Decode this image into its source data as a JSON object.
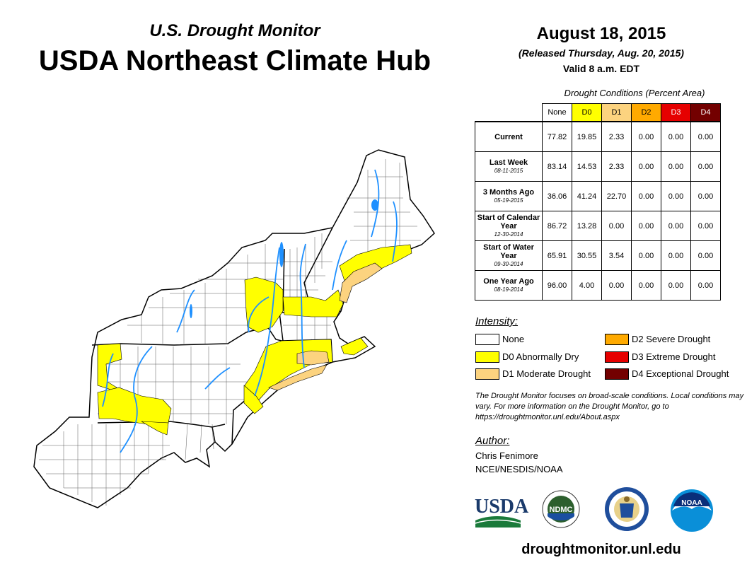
{
  "header": {
    "subtitle": "U.S. Drought Monitor",
    "title": "USDA Northeast Climate Hub",
    "date": "August 18, 2015",
    "released": "(Released Thursday, Aug. 20, 2015)",
    "valid": "Valid 8 a.m. EDT"
  },
  "table": {
    "caption": "Drought Conditions (Percent Area)",
    "columns": [
      {
        "label": "None",
        "color": "#ffffff",
        "text_color": "#000000"
      },
      {
        "label": "D0",
        "color": "#ffff00",
        "text_color": "#000000"
      },
      {
        "label": "D1",
        "color": "#fcd37f",
        "text_color": "#000000"
      },
      {
        "label": "D2",
        "color": "#ffaa00",
        "text_color": "#000000"
      },
      {
        "label": "D3",
        "color": "#e60000",
        "text_color": "#ffffff"
      },
      {
        "label": "D4",
        "color": "#730000",
        "text_color": "#ffffff"
      }
    ],
    "rows": [
      {
        "label": "Current",
        "date": "",
        "values": [
          "77.82",
          "19.85",
          "2.33",
          "0.00",
          "0.00",
          "0.00"
        ]
      },
      {
        "label": "Last Week",
        "date": "08-11-2015",
        "values": [
          "83.14",
          "14.53",
          "2.33",
          "0.00",
          "0.00",
          "0.00"
        ]
      },
      {
        "label": "3 Months Ago",
        "date": "05-19-2015",
        "values": [
          "36.06",
          "41.24",
          "22.70",
          "0.00",
          "0.00",
          "0.00"
        ]
      },
      {
        "label": "Start of Calendar Year",
        "date": "12-30-2014",
        "values": [
          "86.72",
          "13.28",
          "0.00",
          "0.00",
          "0.00",
          "0.00"
        ]
      },
      {
        "label": "Start of Water Year",
        "date": "09-30-2014",
        "values": [
          "65.91",
          "30.55",
          "3.54",
          "0.00",
          "0.00",
          "0.00"
        ]
      },
      {
        "label": "One Year Ago",
        "date": "08-19-2014",
        "values": [
          "96.00",
          "4.00",
          "0.00",
          "0.00",
          "0.00",
          "0.00"
        ]
      }
    ]
  },
  "legend": {
    "title": "Intensity:",
    "items": [
      {
        "label": "None",
        "color": "#ffffff"
      },
      {
        "label": "D0 Abnormally Dry",
        "color": "#ffff00"
      },
      {
        "label": "D1 Moderate Drought",
        "color": "#fcd37f"
      },
      {
        "label": "D2 Severe Drought",
        "color": "#ffaa00"
      },
      {
        "label": "D3 Extreme Drought",
        "color": "#e60000"
      },
      {
        "label": "D4 Exceptional Drought",
        "color": "#730000"
      }
    ]
  },
  "note": "The Drought Monitor focuses on broad-scale conditions. Local conditions may vary. For more information on the Drought Monitor, go to https://droughtmonitor.unl.edu/About.aspx",
  "author": {
    "title": "Author:",
    "name": "Chris Fenimore",
    "org": "NCEI/NESDIS/NOAA"
  },
  "logos": {
    "usda": "USDA",
    "ndmc": "NDMC",
    "noaa": "NOAA"
  },
  "footer_url": "droughtmonitor.unl.edu",
  "colors": {
    "water": "#1e90ff",
    "boundary": "#000000"
  }
}
